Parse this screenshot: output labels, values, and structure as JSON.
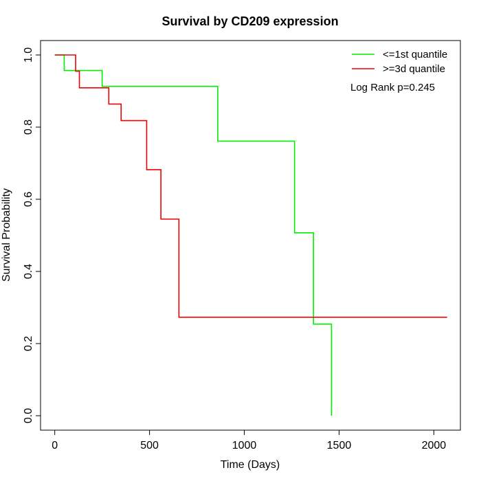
{
  "chart_data": {
    "type": "line",
    "title": "Survival by CD209 expression",
    "xlabel": "Time (Days)",
    "ylabel": "Survival Probability",
    "xlim": [
      -75,
      2140
    ],
    "ylim": [
      -0.04,
      1.04
    ],
    "x_ticks": [
      0,
      500,
      1000,
      1500,
      2000
    ],
    "y_ticks": [
      0.0,
      0.2,
      0.4,
      0.6,
      0.8,
      1.0
    ],
    "x_tick_labels": [
      "0",
      "500",
      "1000",
      "1500",
      "2000"
    ],
    "y_tick_labels": [
      "0.0",
      "0.2",
      "0.4",
      "0.6",
      "0.8",
      "1.0"
    ],
    "step": true,
    "grid": false,
    "legend_position": "top-right",
    "annotation": "Log Rank p=0.245",
    "series": [
      {
        "name": "<=1st quantile",
        "color": "#00ee00",
        "points": [
          [
            0,
            1.0
          ],
          [
            50,
            0.957
          ],
          [
            250,
            0.913
          ],
          [
            860,
            0.761
          ],
          [
            1265,
            0.507
          ],
          [
            1365,
            0.254
          ],
          [
            1460,
            0.0
          ]
        ]
      },
      {
        "name": ">=3d quantile",
        "color": "#ee0000",
        "points": [
          [
            0,
            1.0
          ],
          [
            110,
            0.955
          ],
          [
            130,
            0.909
          ],
          [
            285,
            0.864
          ],
          [
            350,
            0.818
          ],
          [
            485,
            0.682
          ],
          [
            560,
            0.545
          ],
          [
            655,
            0.273
          ],
          [
            2070,
            0.273
          ]
        ]
      }
    ]
  }
}
